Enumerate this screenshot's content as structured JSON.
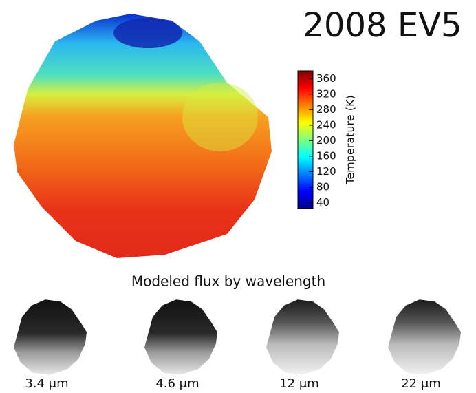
{
  "title": "2008 EV5",
  "colorbar": {
    "label": "Temperature (K)",
    "lim": [
      25,
      380
    ],
    "ticks": [
      40,
      80,
      120,
      160,
      200,
      240,
      280,
      320,
      360
    ]
  },
  "subtitle": "Modeled flux by wavelength",
  "panels": [
    "3.4 μm",
    "4.6 μm",
    "12 μm",
    "22 μm"
  ]
}
